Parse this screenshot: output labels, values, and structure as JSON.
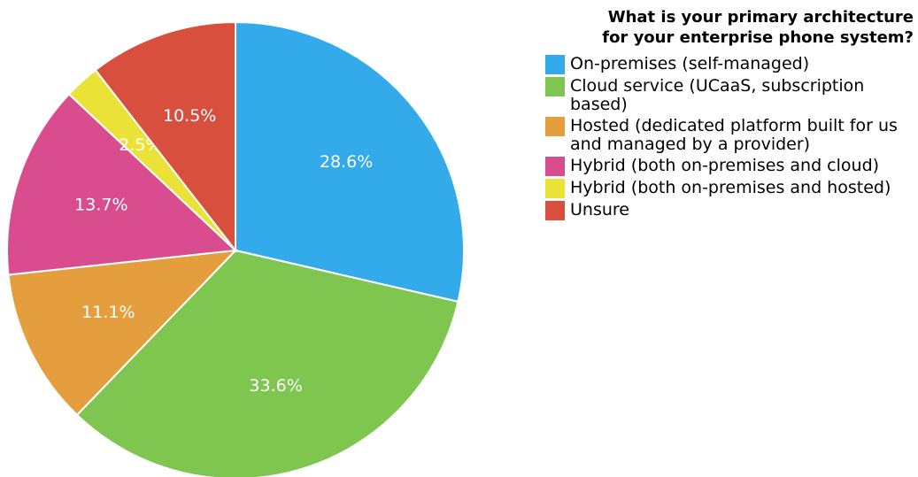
{
  "chart_data": {
    "type": "pie",
    "title": "What is your primary architecture for your enterprise phone system?",
    "title_lines": [
      "What is your primary architecture",
      "for your enterprise phone system?"
    ],
    "categories": [
      "On-premises (self-managed)",
      "Cloud service (UCaaS, subscription based)",
      "Hosted (dedicated platform built for us and managed by a provider)",
      "Hybrid (both on-premises and cloud)",
      "Hybrid (both on-premises and hosted)",
      "Unsure"
    ],
    "values": [
      28.6,
      33.6,
      11.1,
      13.7,
      2.5,
      10.5
    ],
    "data_labels": [
      "28.6%",
      "33.6%",
      "11.1%",
      "13.7%",
      "2.5%",
      "10.5%"
    ],
    "colors": [
      "#33ABEB",
      "#7EC650",
      "#E59E3E",
      "#D94D8E",
      "#EBE238",
      "#D94F3D"
    ],
    "legend_position": "right"
  }
}
